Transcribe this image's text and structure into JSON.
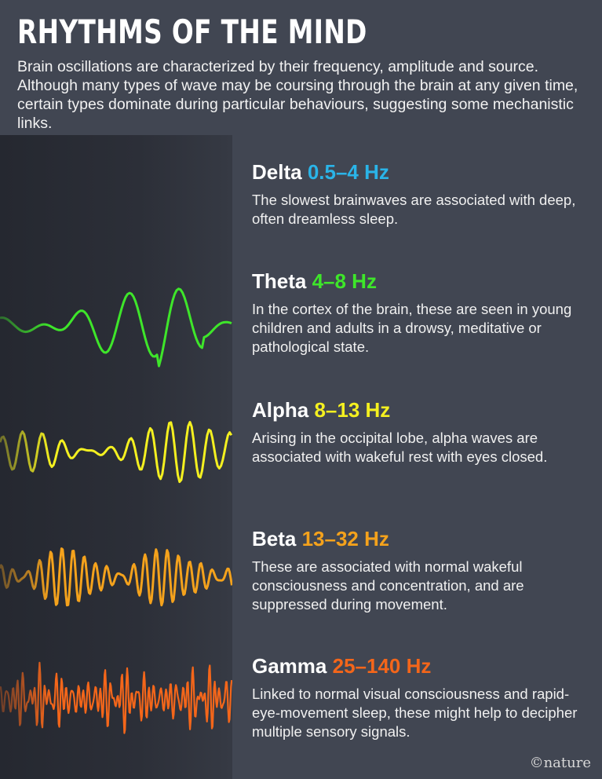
{
  "title": "RHYTHMS OF THE MIND",
  "intro": "Brain oscillations are characterized by their frequency, amplitude and source. Although many types of wave may be coursing through the brain at any given time, certain types dominate during particular behaviours, suggesting some mechanistic links.",
  "waves": [
    {
      "name": "Delta",
      "range": "0.5–4 Hz",
      "color": "#2ab4e8",
      "text": "The slowest brainwaves are associated with deep, often dreamless sleep."
    },
    {
      "name": "Theta",
      "range": "4–8 Hz",
      "color": "#3ee62a",
      "text": "In the cortex of the brain, these are seen in young children and adults in a drowsy, meditative or pathological state."
    },
    {
      "name": "Alpha",
      "range": "8–13 Hz",
      "color": "#f4f020",
      "text": "Arising in the occipital lobe, alpha waves are associated with wakeful rest with eyes closed."
    },
    {
      "name": "Beta",
      "range": "13–32 Hz",
      "color": "#f4a21c",
      "text": "These are associated with normal wakeful consciousness and concentration, and are suppressed during movement."
    },
    {
      "name": "Gamma",
      "range": "25–140 Hz",
      "color": "#f4661a",
      "text": "Linked to normal visual consciousness and rapid-eye-movement sleep, these might help to decipher multiple sensory signals."
    }
  ],
  "credit": "©nature"
}
